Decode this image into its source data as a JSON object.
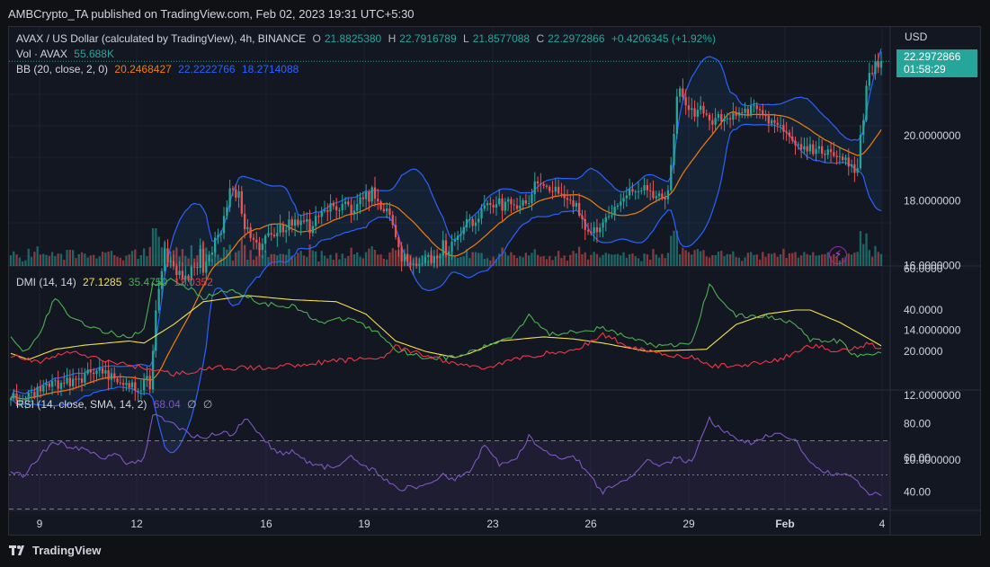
{
  "header": {
    "publisher_line": "AMBCrypto_TA published on TradingView.com, Feb 02, 2023 19:31 UTC+5:30"
  },
  "price_pane": {
    "symbol": "AVAX / US Dollar (calculated by TradingView), 4h, BINANCE",
    "ohlc": {
      "o_label": "O",
      "o": "21.8825380",
      "h_label": "H",
      "h": "22.7916789",
      "l_label": "L",
      "l": "21.8577088",
      "c_label": "C",
      "c": "22.2972866",
      "change": "+0.4206345 (+1.92%)"
    },
    "vol_label": "Vol · AVAX",
    "vol_value": "55.688K",
    "bb_label": "BB (20, close, 2, 0)",
    "bb_basis": "20.2468427",
    "bb_upper": "22.2222766",
    "bb_lower": "18.2714088",
    "currency": "USD",
    "price_tag_value": "22.2972866",
    "price_tag_timer": "01:58:29"
  },
  "dmi_pane": {
    "label": "DMI (14, 14)",
    "adx": "27.1285",
    "plus_di": "35.4750",
    "minus_di": "12.0352"
  },
  "rsi_pane": {
    "label": "RSI (14, close, SMA, 14, 2)",
    "value": "68.04",
    "sym1": "∅",
    "sym2": "∅"
  },
  "footer": {
    "brand": "TradingView"
  },
  "colors": {
    "up": "#26a69a",
    "down": "#ef5350",
    "bb_band": "#2962ff",
    "bb_basis": "#f57c00",
    "adx": "#f5e14a",
    "plus_di": "#4caf50",
    "minus_di": "#f23645",
    "rsi": "#7e57c2"
  },
  "chart_data": [
    {
      "type": "candlestick",
      "title": "AVAX / US Dollar (calculated by TradingView), 4h, BINANCE",
      "x_ticks": [
        "9",
        "12",
        "16",
        "19",
        "23",
        "26",
        "29",
        "Feb",
        "4"
      ],
      "y_ticks": [
        "22.2972866",
        "20.0000000",
        "18.0000000",
        "16.0000000",
        "14.0000000",
        "12.0000000",
        "10.0000000"
      ],
      "ylim": [
        9.5,
        23.4
      ],
      "close_path_anchors": [
        [
          0,
          11.9
        ],
        [
          10,
          12.0
        ],
        [
          20,
          12.4
        ],
        [
          30,
          12.8
        ],
        [
          40,
          12.6
        ],
        [
          47,
          12.2
        ],
        [
          50,
          14.8
        ],
        [
          54,
          16.2
        ],
        [
          60,
          15.8
        ],
        [
          66,
          16.6
        ],
        [
          72,
          17.0
        ],
        [
          76,
          18.5
        ],
        [
          80,
          17.6
        ],
        [
          85,
          16.4
        ],
        [
          95,
          17.2
        ],
        [
          105,
          17.2
        ],
        [
          115,
          17.8
        ],
        [
          122,
          18.2
        ],
        [
          128,
          17.6
        ],
        [
          134,
          16.2
        ],
        [
          142,
          16.0
        ],
        [
          150,
          16.6
        ],
        [
          160,
          17.2
        ],
        [
          170,
          17.9
        ],
        [
          180,
          18.0
        ],
        [
          185,
          18.6
        ],
        [
          192,
          18.3
        ],
        [
          197,
          18.0
        ],
        [
          204,
          17.4
        ],
        [
          207,
          17.0
        ],
        [
          212,
          17.6
        ],
        [
          220,
          18.2
        ],
        [
          228,
          18.3
        ],
        [
          236,
          18.1
        ],
        [
          238,
          19.2
        ],
        [
          240,
          21.3
        ],
        [
          245,
          20.7
        ],
        [
          255,
          20.6
        ],
        [
          262,
          20.9
        ],
        [
          270,
          20.5
        ],
        [
          275,
          20.0
        ],
        [
          282,
          19.5
        ],
        [
          287,
          19.6
        ],
        [
          293,
          19.3
        ],
        [
          297,
          19.0
        ],
        [
          300,
          20.3
        ],
        [
          302,
          21.5
        ],
        [
          305,
          22.3
        ]
      ],
      "close": [
        11.9,
        12.06,
        11.83,
        11.83,
        11.84,
        11.87,
        12.08,
        12.1,
        11.95,
        12.26,
        12.12,
        12.3,
        12.37,
        12.26,
        12.44,
        12.46,
        12.2,
        12.39,
        12.37,
        12.54,
        12.28,
        12.51,
        12.48,
        12.52,
        12.39,
        12.67,
        12.79,
        12.7,
        12.66,
        12.76,
        12.84,
        12.67,
        12.77,
        12.48,
        12.68,
        12.52,
        12.4,
        12.38,
        12.32,
        12.38,
        12.25,
        12.4,
        12.14,
        12.14,
        12.15,
        12.48,
        12.6,
        12.19,
        13.37,
        14.62,
        15.28,
        15.83,
        16.53,
        16.11,
        16.14,
        15.98,
        15.71,
        15.84,
        15.57,
        15.69,
        15.55,
        15.97,
        15.96,
        15.93,
        16.51,
        15.78,
        16.12,
        16.33,
        16.4,
        16.86,
        16.95,
        17.0,
        17.53,
        17.8,
        18.38,
        18.35,
        18.09,
        18.29,
        17.6,
        17.12,
        17.18,
        16.85,
        16.8,
        16.71,
        16.48,
        16.67,
        16.92,
        17.0,
        16.95,
        16.9,
        17.01,
        17.27,
        17.03,
        17.09,
        17.42,
        17.23,
        17.42,
        17.25,
        17.39,
        17.35,
        17.43,
        17.0,
        17.22,
        17.53,
        17.5,
        17.67,
        17.71,
        17.66,
        17.92,
        17.83,
        17.7,
        17.71,
        17.9,
        17.97,
        17.88,
        17.59,
        17.69,
        17.9,
        18.1,
        18.05,
        18.26,
        17.97,
        18.41,
        18.06,
        17.98,
        17.74,
        17.67,
        17.76,
        17.56,
        17.25,
        16.88,
        16.57,
        16.13,
        16.36,
        16.11,
        16.02,
        16.06,
        15.99,
        16.05,
        16.07,
        16.26,
        16.33,
        16.08,
        16.29,
        16.23,
        16.3,
        16.78,
        16.33,
        16.44,
        16.74,
        16.79,
        16.92,
        16.97,
        17.18,
        17.43,
        17.43,
        17.22,
        17.33,
        17.45,
        17.75,
        17.86,
        17.93,
        17.87,
        17.79,
        17.89,
        18.07,
        17.69,
        17.97,
        18.05,
        17.89,
        17.86,
        17.75,
        17.85,
        18.01,
        17.91,
        17.93,
        18.2,
        18.59,
        18.53,
        18.51,
        18.46,
        18.43,
        18.3,
        18.28,
        18.43,
        18.22,
        18.21,
        18.08,
        18.03,
        18.01,
        17.82,
        17.93,
        17.54,
        17.43,
        17.1,
        17.05,
        16.99,
        17.18,
        17.03,
        17.17,
        17.33,
        17.49,
        17.52,
        17.55,
        17.81,
        17.85,
        17.97,
        18.08,
        18.16,
        18.36,
        18.28,
        18.28,
        18.29,
        18.32,
        18.48,
        18.32,
        18.3,
        18.08,
        18.14,
        18.22,
        18.09,
        18.04,
        18.32,
        19.1,
        20.06,
        21.21,
        21.46,
        21.19,
        20.94,
        20.8,
        20.85,
        20.59,
        20.8,
        20.92,
        20.69,
        20.65,
        20.48,
        20.34,
        20.55,
        20.67,
        20.44,
        20.53,
        20.54,
        20.5,
        20.71,
        20.62,
        20.72,
        20.71,
        20.83,
        20.64,
        20.92,
        20.94,
        20.82,
        20.79,
        20.64,
        20.62,
        20.38,
        20.48,
        20.4,
        20.34,
        20.34,
        20.13,
        20.1,
        19.98,
        19.85,
        19.71,
        19.74,
        19.58,
        19.68,
        19.52,
        19.74,
        19.44,
        19.6,
        19.68,
        19.45,
        19.41,
        19.58,
        19.5,
        19.38,
        19.34,
        19.36,
        19.25,
        19.33,
        19.05,
        19.12,
        18.86,
        19.0,
        20.03,
        20.48,
        21.54,
        21.94,
        21.91,
        22.3,
        22.1,
        22.3
      ],
      "volume_source": "approximated"
    },
    {
      "type": "line",
      "title": "DMI (14, 14)",
      "y_ticks": [
        "60.0000",
        "40.0000",
        "20.0000"
      ],
      "ylim": [
        4,
        62
      ],
      "series": [
        {
          "name": "ADX",
          "anchors": [
            [
              0,
              19
            ],
            [
              6,
              16
            ],
            [
              15,
              21
            ],
            [
              25,
              23
            ],
            [
              40,
              25
            ],
            [
              45,
              24
            ],
            [
              55,
              33
            ],
            [
              65,
              44
            ],
            [
              80,
              47
            ],
            [
              95,
              45
            ],
            [
              110,
              44
            ],
            [
              120,
              38
            ],
            [
              130,
              25
            ],
            [
              140,
              20
            ],
            [
              150,
              17
            ],
            [
              155,
              19
            ],
            [
              165,
              25
            ],
            [
              180,
              27
            ],
            [
              190,
              26
            ],
            [
              200,
              24
            ],
            [
              215,
              20
            ],
            [
              235,
              21
            ],
            [
              245,
              33
            ],
            [
              255,
              38
            ],
            [
              265,
              40
            ],
            [
              270,
              40
            ],
            [
              280,
              34
            ],
            [
              290,
              26
            ],
            [
              296,
              21
            ],
            [
              300,
              24
            ],
            [
              305,
              27
            ]
          ]
        },
        {
          "name": "+DI",
          "anchors": [
            [
              0,
              26
            ],
            [
              5,
              20
            ],
            [
              10,
              30
            ],
            [
              15,
              46
            ],
            [
              20,
              37
            ],
            [
              30,
              30
            ],
            [
              40,
              27
            ],
            [
              45,
              31
            ],
            [
              48,
              52
            ],
            [
              55,
              55
            ],
            [
              65,
              46
            ],
            [
              75,
              50
            ],
            [
              85,
              43
            ],
            [
              95,
              42
            ],
            [
              105,
              34
            ],
            [
              115,
              36
            ],
            [
              125,
              28
            ],
            [
              130,
              21
            ],
            [
              140,
              17
            ],
            [
              150,
              17
            ],
            [
              160,
              22
            ],
            [
              170,
              28
            ],
            [
              175,
              38
            ],
            [
              182,
              28
            ],
            [
              190,
              30
            ],
            [
              200,
              31
            ],
            [
              210,
              26
            ],
            [
              220,
              22
            ],
            [
              230,
              24
            ],
            [
              236,
              52
            ],
            [
              245,
              37
            ],
            [
              255,
              37
            ],
            [
              265,
              34
            ],
            [
              270,
              25
            ],
            [
              280,
              25
            ],
            [
              285,
              18
            ],
            [
              290,
              18
            ],
            [
              295,
              20
            ],
            [
              300,
              40
            ],
            [
              305,
              35
            ]
          ]
        },
        {
          "name": "-DI",
          "anchors": [
            [
              0,
              18
            ],
            [
              10,
              15
            ],
            [
              20,
              20
            ],
            [
              30,
              16
            ],
            [
              45,
              12
            ],
            [
              55,
              9
            ],
            [
              70,
              12
            ],
            [
              85,
              12
            ],
            [
              100,
              14
            ],
            [
              115,
              16
            ],
            [
              125,
              17
            ],
            [
              130,
              22
            ],
            [
              140,
              18
            ],
            [
              150,
              14
            ],
            [
              160,
              12
            ],
            [
              170,
              16
            ],
            [
              180,
              19
            ],
            [
              190,
              20
            ],
            [
              200,
              28
            ],
            [
              210,
              22
            ],
            [
              220,
              19
            ],
            [
              230,
              17
            ],
            [
              236,
              13
            ],
            [
              245,
              13
            ],
            [
              260,
              16
            ],
            [
              270,
              23
            ],
            [
              280,
              20
            ],
            [
              290,
              24
            ],
            [
              300,
              17
            ],
            [
              305,
              12
            ]
          ]
        }
      ]
    },
    {
      "type": "line",
      "title": "RSI (14, close, SMA, 14, 2)",
      "y_ticks": [
        "80.00",
        "60.00",
        "40.00"
      ],
      "ylim": [
        27,
        88
      ],
      "bands": [
        70,
        50,
        30
      ],
      "series": [
        {
          "name": "RSI",
          "anchors": [
            [
              0,
              51
            ],
            [
              5,
              50
            ],
            [
              10,
              62
            ],
            [
              15,
              70
            ],
            [
              20,
              66
            ],
            [
              25,
              65
            ],
            [
              30,
              60
            ],
            [
              35,
              62
            ],
            [
              40,
              56
            ],
            [
              45,
              60
            ],
            [
              48,
              85
            ],
            [
              55,
              80
            ],
            [
              60,
              74
            ],
            [
              65,
              72
            ],
            [
              70,
              74
            ],
            [
              75,
              74
            ],
            [
              80,
              84
            ],
            [
              85,
              72
            ],
            [
              90,
              62
            ],
            [
              95,
              64
            ],
            [
              100,
              58
            ],
            [
              105,
              55
            ],
            [
              110,
              54
            ],
            [
              115,
              60
            ],
            [
              120,
              55
            ],
            [
              125,
              50
            ],
            [
              130,
              42
            ],
            [
              140,
              43
            ],
            [
              145,
              50
            ],
            [
              150,
              47
            ],
            [
              155,
              52
            ],
            [
              160,
              68
            ],
            [
              165,
              56
            ],
            [
              170,
              58
            ],
            [
              175,
              72
            ],
            [
              180,
              65
            ],
            [
              185,
              60
            ],
            [
              190,
              62
            ],
            [
              195,
              50
            ],
            [
              200,
              40
            ],
            [
              205,
              46
            ],
            [
              210,
              48
            ],
            [
              215,
              58
            ],
            [
              220,
              56
            ],
            [
              225,
              60
            ],
            [
              230,
              57
            ],
            [
              236,
              83
            ],
            [
              240,
              76
            ],
            [
              250,
              68
            ],
            [
              255,
              72
            ],
            [
              260,
              75
            ],
            [
              265,
              70
            ],
            [
              270,
              56
            ],
            [
              275,
              52
            ],
            [
              280,
              50
            ],
            [
              285,
              48
            ],
            [
              290,
              38
            ],
            [
              296,
              40
            ],
            [
              300,
              64
            ],
            [
              303,
              68
            ]
          ]
        }
      ]
    }
  ]
}
